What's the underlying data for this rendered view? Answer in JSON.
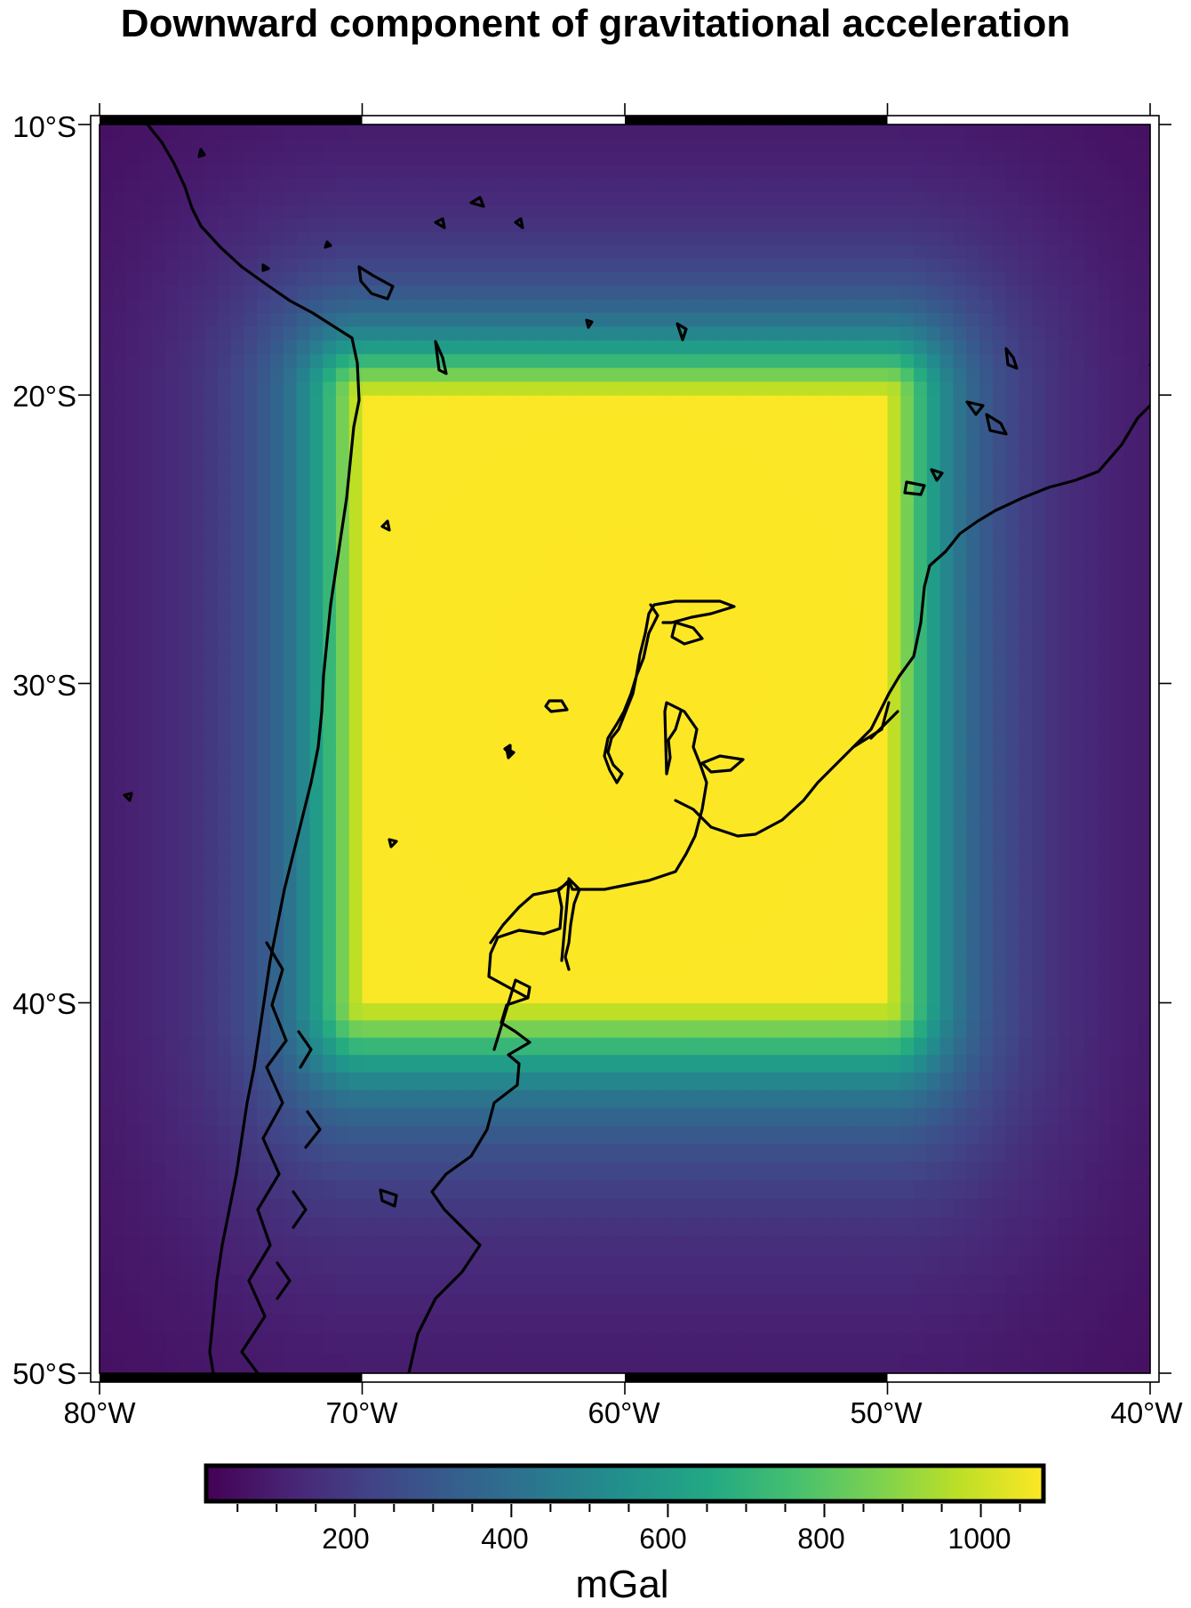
{
  "title": "Downward component of gravitational acceleration",
  "map": {
    "projection": "Mercator",
    "region": {
      "lon": [
        -80,
        -40
      ],
      "lat": [
        -50,
        -10
      ]
    },
    "y_ticks": [
      {
        "lat": -10,
        "label": "10°S"
      },
      {
        "lat": -20,
        "label": "20°S"
      },
      {
        "lat": -30,
        "label": "30°S"
      },
      {
        "lat": -40,
        "label": "40°S"
      },
      {
        "lat": -50,
        "label": "50°S"
      }
    ],
    "x_ticks": [
      {
        "lon": -80,
        "label": "80°W"
      },
      {
        "lon": -70,
        "label": "70°W"
      },
      {
        "lon": -60,
        "label": "60°W"
      },
      {
        "lon": -50,
        "label": "50°W"
      },
      {
        "lon": -40,
        "label": "40°W"
      }
    ],
    "coastline_color": "#000000",
    "frame_style": "fancy"
  },
  "field": {
    "description_source": "gravity field of a rectangular prism",
    "prism": {
      "lon": [
        -70,
        -50
      ],
      "lat": [
        -40,
        -20
      ]
    },
    "max_mgal": 1080,
    "min_mgal": 10,
    "colormap": "viridis"
  },
  "colorbar": {
    "range": [
      10,
      1080
    ],
    "ticks": [
      200,
      400,
      600,
      800,
      1000
    ],
    "tick_labels": [
      "200",
      "400",
      "600",
      "800",
      "1000"
    ],
    "minor_step": 50,
    "unit": "mGal"
  }
}
